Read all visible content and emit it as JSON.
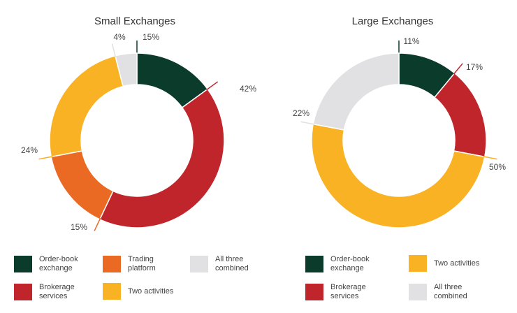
{
  "colors": {
    "order_book": "#0b3b2a",
    "brokerage": "#c1252c",
    "trading_platform": "#ea6a23",
    "two_activities": "#f8b224",
    "all_three": "#e1e1e3"
  },
  "chart_data": [
    {
      "type": "pie",
      "title": "Small Exchanges",
      "slices": [
        {
          "key": "order_book",
          "label": "Order-book exchange",
          "value": 15,
          "text": "15%"
        },
        {
          "key": "brokerage",
          "label": "Brokerage services",
          "value": 42,
          "text": "42%"
        },
        {
          "key": "trading_platform",
          "label": "Trading platform",
          "value": 15,
          "text": "15%"
        },
        {
          "key": "two_activities",
          "label": "Two activities",
          "value": 24,
          "text": "24%"
        },
        {
          "key": "all_three",
          "label": "All three combined",
          "value": 4,
          "text": "4%"
        }
      ]
    },
    {
      "type": "pie",
      "title": "Large Exchanges",
      "slices": [
        {
          "key": "order_book",
          "label": "Order-book exchange",
          "value": 11,
          "text": "11%"
        },
        {
          "key": "brokerage",
          "label": "Brokerage services",
          "value": 17,
          "text": "17%"
        },
        {
          "key": "two_activities",
          "label": "Two activities",
          "value": 50,
          "text": "50%"
        },
        {
          "key": "all_three",
          "label": "All three combined",
          "value": 22,
          "text": "22%"
        }
      ]
    }
  ],
  "legends": {
    "small": [
      {
        "key": "order_book",
        "label": "Order-book exchange"
      },
      {
        "key": "trading_platform",
        "label": "Trading platform"
      },
      {
        "key": "all_three",
        "label": "All three combined"
      },
      {
        "key": "brokerage",
        "label": "Brokerage services"
      },
      {
        "key": "two_activities",
        "label": "Two activities"
      }
    ],
    "large": [
      {
        "key": "order_book",
        "label": "Order-book exchange"
      },
      {
        "key": "two_activities",
        "label": "Two activities"
      },
      {
        "key": "brokerage",
        "label": "Brokerage services"
      },
      {
        "key": "all_three",
        "label": "All three combined"
      }
    ]
  }
}
